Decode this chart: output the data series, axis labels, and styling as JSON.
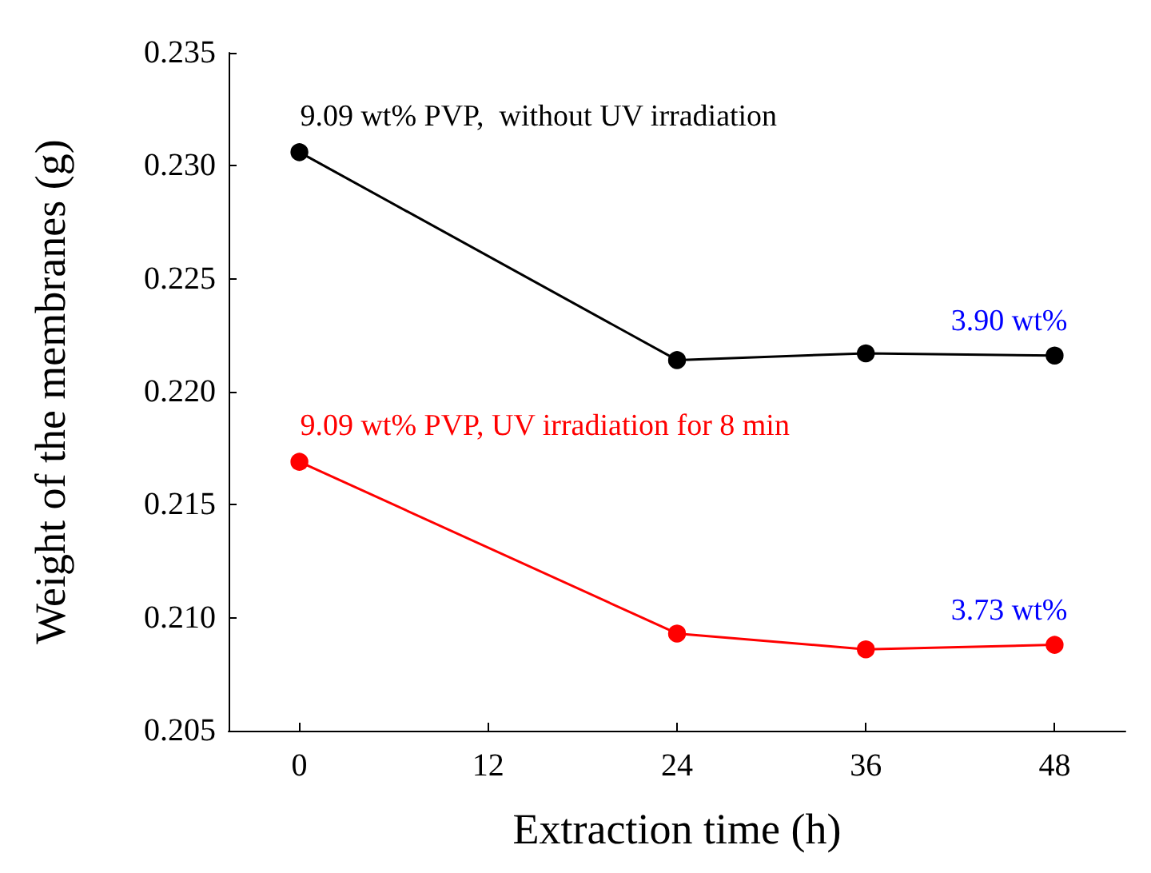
{
  "chart_data": {
    "type": "line",
    "xlabel": "Extraction time (h)",
    "ylabel": "Weight of the membranes (g)",
    "x": [
      0,
      24,
      36,
      48
    ],
    "series": [
      {
        "name": "9.09 wt% PVP,  without UV irradiation",
        "color": "#000000",
        "values": [
          0.2306,
          0.2214,
          0.2217,
          0.2216
        ]
      },
      {
        "name": "9.09 wt% PVP, UV irradiation for 8 min",
        "color": "#ff0000",
        "values": [
          0.2169,
          0.2093,
          0.2086,
          0.2088
        ]
      }
    ],
    "annotations": [
      {
        "text": "3.90 wt%",
        "x": 48,
        "y": 0.2216
      },
      {
        "text": "3.73 wt%",
        "x": 48,
        "y": 0.2088
      }
    ],
    "xlim": [
      -4.5,
      52.5
    ],
    "xticks": [
      0,
      12,
      24,
      36,
      48
    ],
    "ylim": [
      0.205,
      0.235
    ],
    "yticks": [
      0.205,
      {
        "value": 0.21,
        "label": "0.210"
      },
      0.215,
      {
        "value": 0.22,
        "label": "0.220"
      },
      0.225,
      {
        "value": 0.23,
        "label": "0.230"
      },
      0.235
    ],
    "grid": false,
    "legend": false,
    "marker": "circle",
    "line_style": "solid"
  }
}
